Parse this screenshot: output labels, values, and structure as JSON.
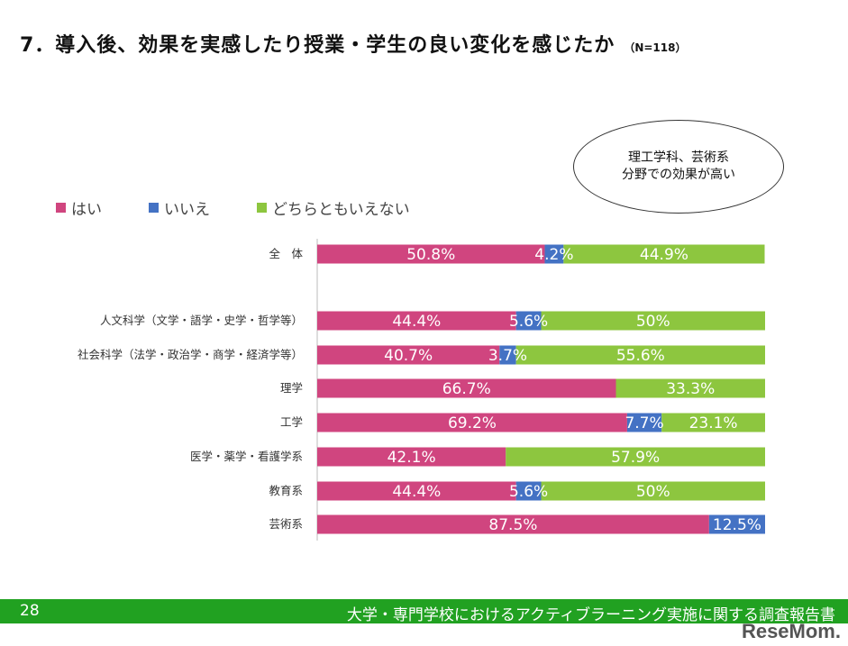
{
  "title": "7．導入後、効果を実感したり授業・学生の良い変化を感じたか",
  "n_label": "（N=118）",
  "callout": [
    "理工学科、芸術系",
    "分野での効果が高い"
  ],
  "footer": {
    "page": "28",
    "text": "大学・専門学校におけるアクティブラーニング実施に関する調査報告書"
  },
  "logo": "ReseMom",
  "chart_data": {
    "type": "bar",
    "stacked": true,
    "orientation": "horizontal",
    "xlim": [
      0,
      100
    ],
    "legend_position": "top-left",
    "series": [
      {
        "name": "はい",
        "color": "#d0457f",
        "values": [
          50.8,
          44.4,
          40.7,
          66.7,
          69.2,
          42.1,
          44.4,
          87.5
        ],
        "labels": [
          "50.8%",
          "44.4%",
          "40.7%",
          "66.7%",
          "69.2%",
          "42.1%",
          "44.4%",
          "87.5%"
        ]
      },
      {
        "name": "いいえ",
        "color": "#4472c4",
        "values": [
          4.2,
          5.6,
          3.7,
          0,
          7.7,
          0,
          5.6,
          12.5
        ],
        "labels": [
          "4.2%",
          "5.6%",
          "3.7%",
          "",
          "7.7%",
          "",
          "5.6%",
          "12.5%"
        ]
      },
      {
        "name": "どちらともいえない",
        "color": "#8dc63f",
        "values": [
          44.9,
          50,
          55.6,
          33.3,
          23.1,
          57.9,
          50,
          0
        ],
        "labels": [
          "44.9%",
          "50%",
          "55.6%",
          "33.3%",
          "23.1%",
          "57.9%",
          "50%",
          ""
        ]
      }
    ],
    "categories": [
      "全　体",
      "人文科学（文学・語学・史学・哲学等）",
      "社会科学（法学・政治学・商学・経済学等）",
      "理学",
      "工学",
      "医学・薬学・看護学系",
      "教育系",
      "芸術系"
    ]
  }
}
